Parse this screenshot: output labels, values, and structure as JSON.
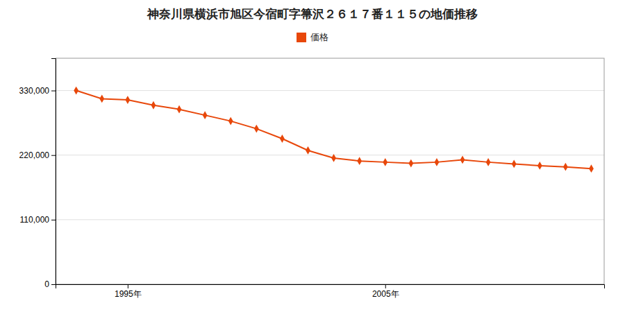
{
  "chart_data": {
    "type": "line",
    "title": "神奈川県横浜市旭区今宿町字箒沢２６１７番１１５の地価推移",
    "x": [
      1993,
      1994,
      1995,
      1996,
      1997,
      1998,
      1999,
      2000,
      2001,
      2002,
      2003,
      2004,
      2005,
      2006,
      2007,
      2008,
      2009,
      2010,
      2011,
      2012,
      2013
    ],
    "series": [
      {
        "name": "価格",
        "color": "#e8470a",
        "marker": "diamond",
        "values": [
          330000,
          316000,
          314000,
          305000,
          298000,
          288000,
          278000,
          265000,
          248000,
          228000,
          215000,
          210000,
          208000,
          206000,
          208000,
          212000,
          208000,
          205000,
          202000,
          200000,
          197000
        ]
      }
    ],
    "xlim": [
      1992.2,
      2013.5
    ],
    "xticks": [
      {
        "value": 1995,
        "label": "1995年"
      },
      {
        "value": 2005,
        "label": "2005年"
      }
    ],
    "ylim": [
      0,
      385000
    ],
    "yticks": [
      0,
      {
        "value": 110000,
        "label": "110,000"
      },
      {
        "value": 220000,
        "label": "220,000"
      },
      {
        "value": 330000,
        "label": "330,000"
      }
    ],
    "grid": true,
    "legend": "top"
  }
}
